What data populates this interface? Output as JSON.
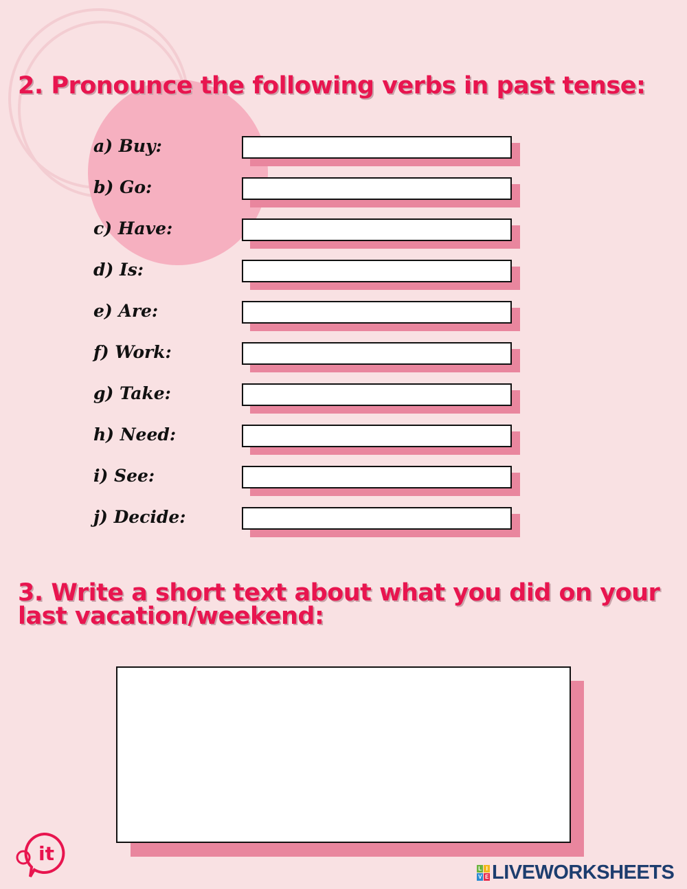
{
  "section2": {
    "title": "2. Pronounce the following verbs in past tense:",
    "items": [
      {
        "label": "a) Buy:",
        "answer": ""
      },
      {
        "label": "b) Go:",
        "answer": ""
      },
      {
        "label": "c) Have:",
        "answer": ""
      },
      {
        "label": "d) Is:",
        "answer": ""
      },
      {
        "label": "e) Are:",
        "answer": ""
      },
      {
        "label": "f) Work:",
        "answer": ""
      },
      {
        "label": "g) Take:",
        "answer": ""
      },
      {
        "label": "h) Need:",
        "answer": ""
      },
      {
        "label": "i) See:",
        "answer": ""
      },
      {
        "label": "j) Decide:",
        "answer": ""
      }
    ]
  },
  "section3": {
    "title_line1": "3. Write a short text about what  you did on your",
    "title_line2": "last vacation/weekend:",
    "answer": ""
  },
  "footer": {
    "logo_text": "it",
    "brand": "LIVEWORKSHEETS",
    "brand_badge": [
      "L",
      "I",
      "V",
      "E"
    ]
  },
  "colors": {
    "accent": "#e8154f",
    "background": "#f9e1e3",
    "shadow": "#e9869e",
    "brand": "#1d3d6e"
  }
}
